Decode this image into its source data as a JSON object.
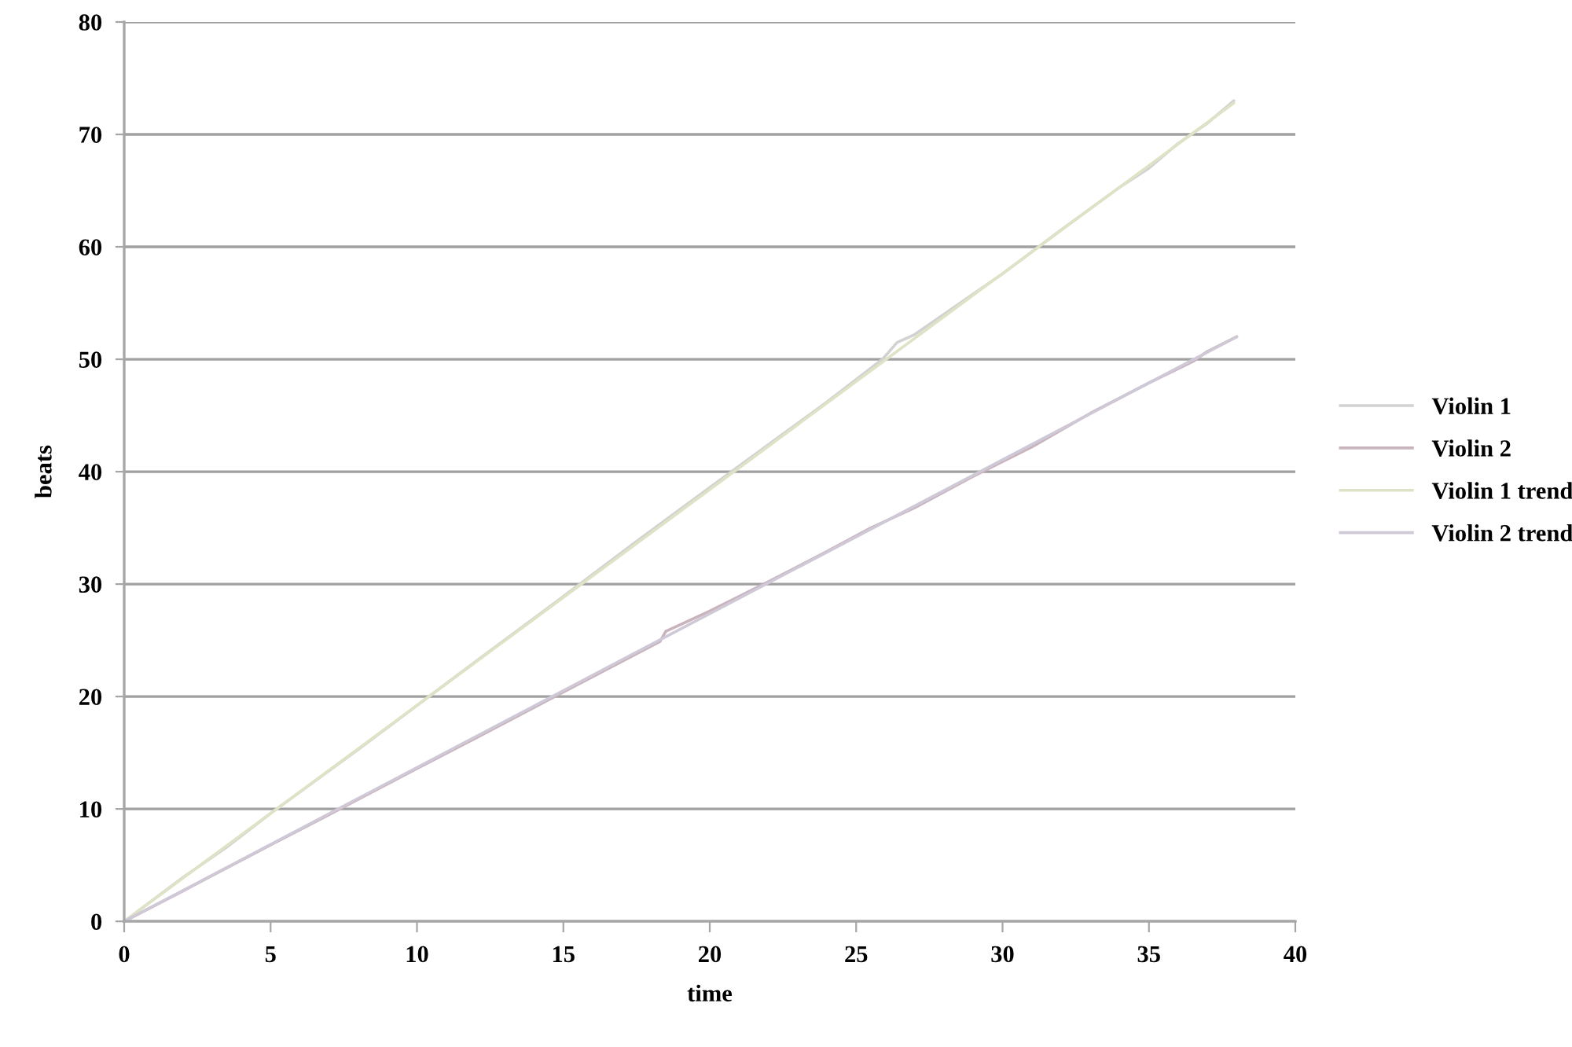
{
  "chart_data": {
    "type": "line",
    "xlabel": "time",
    "ylabel": "beats",
    "xlim": [
      0,
      40
    ],
    "ylim": [
      0,
      80
    ],
    "xticks": [
      0,
      5,
      10,
      15,
      20,
      25,
      30,
      35,
      40
    ],
    "yticks": [
      0,
      10,
      20,
      30,
      40,
      50,
      60,
      70,
      80
    ],
    "grid": "y",
    "legend": "right",
    "series": [
      {
        "name": "Violin 1",
        "color": "#d2d2d2",
        "x": [
          0,
          2,
          3.5,
          5,
          8,
          10,
          12,
          15,
          17.5,
          20,
          22,
          24,
          25.9,
          26.4,
          27,
          28,
          30,
          32,
          34,
          35,
          36,
          37,
          37.9
        ],
        "values": [
          0,
          3.9,
          6.6,
          9.6,
          15.3,
          19.2,
          23.1,
          28.9,
          33.8,
          38.6,
          42.4,
          46.2,
          50.0,
          51.5,
          52.2,
          54.0,
          57.6,
          61.5,
          65.3,
          67.0,
          69.2,
          71.0,
          73.0
        ]
      },
      {
        "name": "Violin 2",
        "color": "#c9b3bd",
        "x": [
          0,
          2,
          5,
          7,
          10,
          12,
          15,
          18.3,
          18.5,
          19,
          20,
          21,
          22,
          24,
          25.5,
          27,
          29,
          31,
          33,
          35,
          36.5,
          37,
          38
        ],
        "values": [
          0,
          2.7,
          6.8,
          9.5,
          13.6,
          16.3,
          20.4,
          24.9,
          25.8,
          26.4,
          27.6,
          28.9,
          30.2,
          32.9,
          35.0,
          36.8,
          39.6,
          42.2,
          45.2,
          47.9,
          49.8,
          50.7,
          52.0
        ]
      },
      {
        "name": "Violin 1 trend",
        "color": "#dfe3c6",
        "type": "line",
        "x": [
          0,
          37.9
        ],
        "values": [
          0,
          72.8
        ]
      },
      {
        "name": "Violin 2 trend",
        "color": "#cfc8d6",
        "type": "line",
        "x": [
          0,
          38
        ],
        "values": [
          0,
          52.0
        ]
      }
    ]
  }
}
